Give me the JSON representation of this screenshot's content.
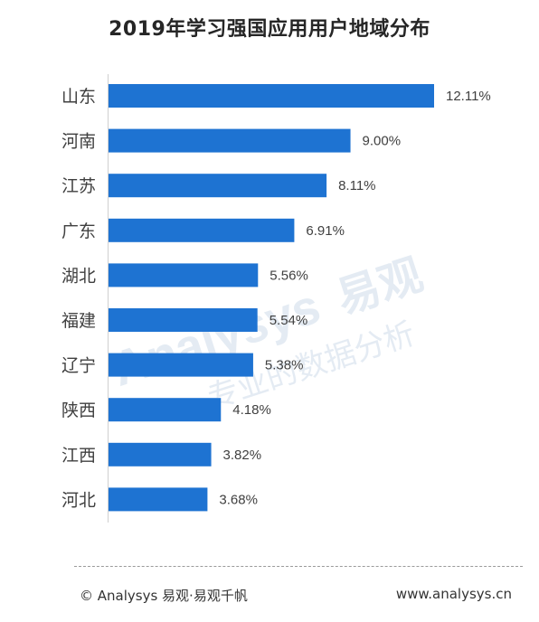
{
  "chart_data": {
    "type": "bar",
    "orientation": "horizontal",
    "title": "2019年学习强国应用用户地域分布",
    "categories": [
      "山东",
      "河南",
      "江苏",
      "广东",
      "湖北",
      "福建",
      "辽宁",
      "陕西",
      "江西",
      "河北"
    ],
    "values": [
      12.11,
      9.0,
      8.11,
      6.91,
      5.56,
      5.54,
      5.38,
      4.18,
      3.82,
      3.68
    ],
    "value_labels": [
      "12.11%",
      "9.00%",
      "8.11%",
      "6.91%",
      "5.56%",
      "5.54%",
      "5.38%",
      "4.18%",
      "3.82%",
      "3.68%"
    ],
    "xlim": [
      0,
      12.11
    ],
    "bar_color": "#1e73d2",
    "grid": false,
    "legend": "none"
  },
  "footer": {
    "left": "© Analysys 易观·易观千帆",
    "right": "www.analysys.cn"
  },
  "watermark": {
    "brand": "Analysys",
    "cn": "易观",
    "slogan": "专业的数据分析"
  }
}
